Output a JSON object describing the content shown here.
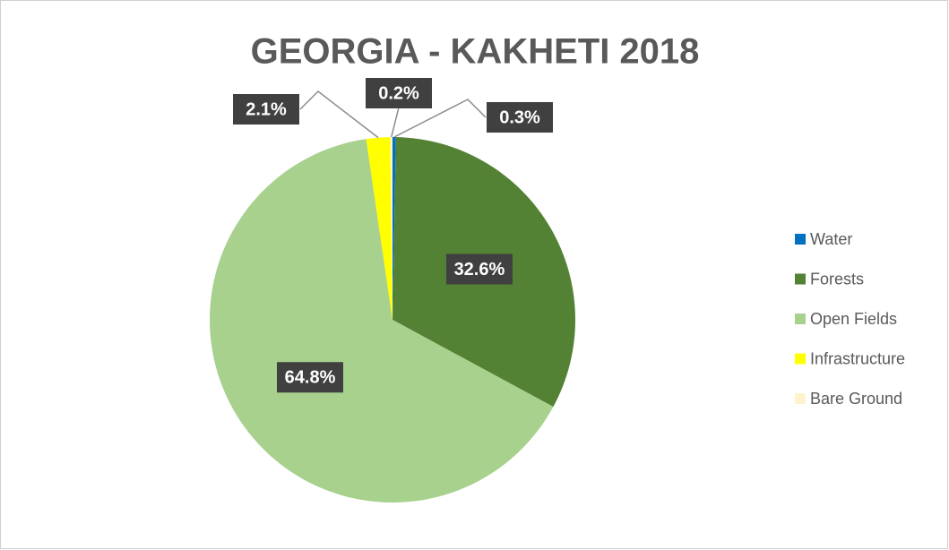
{
  "chart_data": {
    "type": "pie",
    "title": "GEORGIA - KAKHETI 2018",
    "categories": [
      "Water",
      "Forests",
      "Open Fields",
      "Infrastructure",
      "Bare Ground"
    ],
    "values": [
      0.3,
      32.6,
      64.8,
      2.1,
      0.2
    ],
    "value_labels": [
      "0.3%",
      "32.6%",
      "64.8%",
      "2.1%",
      "0.2%"
    ],
    "colors": [
      "#0070c0",
      "#548235",
      "#a9d18e",
      "#ffff00",
      "#fff2cc"
    ],
    "legend": "right"
  }
}
